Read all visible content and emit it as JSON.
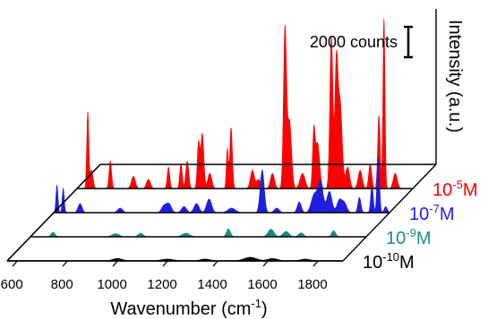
{
  "chart_data": {
    "type": "line",
    "style": "3d-waterfall",
    "xlabel": "Wavenumber (cm",
    "xlabel_sup": "-1",
    "xlabel_end": ")",
    "ylabel": "Intensity (a.u.)",
    "xlim": [
      560,
      1900
    ],
    "x_ticks": [
      600,
      800,
      1000,
      1200,
      1400,
      1600,
      1800
    ],
    "x_tick_labels": [
      "600",
      "800",
      "1000",
      "1200",
      "1400",
      "1600",
      "1800"
    ],
    "scale_bar": {
      "label": "2000 counts",
      "value": 2000
    },
    "series": [
      {
        "label_base": "10",
        "label_exp": "-10",
        "label_unit": "M",
        "color": "#000000",
        "peaks": [
          [
            1000,
            80,
            20
          ],
          [
            1200,
            60,
            25
          ],
          [
            1350,
            60,
            20
          ],
          [
            1530,
            120,
            25
          ],
          [
            1620,
            80,
            20
          ],
          [
            1750,
            60,
            20
          ]
        ]
      },
      {
        "label_base": "10",
        "label_exp": "-9",
        "label_unit": "M",
        "color": "#1a8a8a",
        "peaks": [
          [
            650,
            150,
            8
          ],
          [
            900,
            100,
            15
          ],
          [
            1000,
            120,
            10
          ],
          [
            1180,
            120,
            15
          ],
          [
            1350,
            260,
            8
          ],
          [
            1520,
            250,
            12
          ],
          [
            1580,
            180,
            12
          ],
          [
            1640,
            130,
            10
          ],
          [
            1770,
            200,
            8
          ]
        ]
      },
      {
        "label_base": "10",
        "label_exp": "-7",
        "label_unit": "M",
        "color": "#1f1fe0",
        "peaks": [
          [
            573,
            900,
            4
          ],
          [
            598,
            800,
            4
          ],
          [
            665,
            300,
            8
          ],
          [
            825,
            150,
            10
          ],
          [
            1000,
            220,
            10
          ],
          [
            1020,
            280,
            10
          ],
          [
            1080,
            200,
            10
          ],
          [
            1130,
            300,
            10
          ],
          [
            1180,
            450,
            10
          ],
          [
            1270,
            150,
            15
          ],
          [
            1392,
            1400,
            8
          ],
          [
            1450,
            150,
            10
          ],
          [
            1540,
            350,
            8
          ],
          [
            1600,
            600,
            12
          ],
          [
            1625,
            1000,
            10
          ],
          [
            1660,
            700,
            10
          ],
          [
            1700,
            400,
            10
          ],
          [
            1720,
            300,
            10
          ],
          [
            1780,
            500,
            6
          ],
          [
            1830,
            900,
            5
          ],
          [
            1855,
            1800,
            5
          ],
          [
            1885,
            200,
            6
          ]
        ]
      },
      {
        "label_base": "10",
        "label_exp": "-5",
        "label_unit": "M",
        "color": "#ff0000",
        "peaks": [
          [
            603,
            2500,
            4
          ],
          [
            618,
            600,
            6
          ],
          [
            693,
            900,
            5
          ],
          [
            785,
            400,
            8
          ],
          [
            845,
            300,
            8
          ],
          [
            925,
            700,
            5
          ],
          [
            975,
            800,
            5
          ],
          [
            1000,
            900,
            6
          ],
          [
            1045,
            1500,
            5
          ],
          [
            1060,
            1800,
            6
          ],
          [
            1090,
            500,
            8
          ],
          [
            1160,
            1300,
            4
          ],
          [
            1175,
            2000,
            5
          ],
          [
            1260,
            600,
            8
          ],
          [
            1285,
            300,
            8
          ],
          [
            1340,
            500,
            8
          ],
          [
            1390,
            5200,
            6
          ],
          [
            1408,
            2200,
            8
          ],
          [
            1460,
            500,
            10
          ],
          [
            1505,
            1800,
            5
          ],
          [
            1520,
            1500,
            8
          ],
          [
            1575,
            5000,
            6
          ],
          [
            1595,
            4000,
            6
          ],
          [
            1610,
            2800,
            8
          ],
          [
            1640,
            700,
            8
          ],
          [
            1690,
            600,
            8
          ],
          [
            1730,
            800,
            6
          ],
          [
            1765,
            2400,
            5
          ],
          [
            1785,
            5600,
            4
          ],
          [
            1830,
            500,
            8
          ]
        ]
      }
    ]
  }
}
